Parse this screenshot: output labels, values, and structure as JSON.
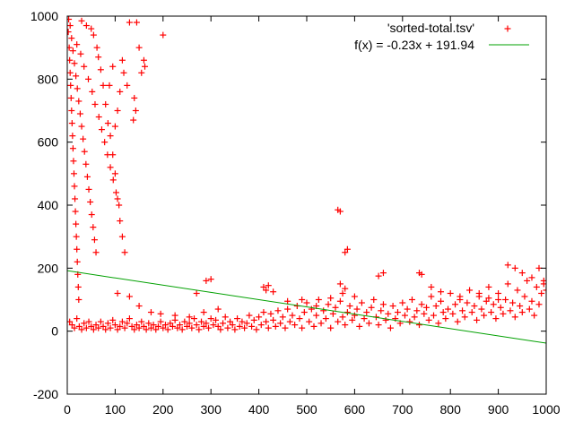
{
  "chart_data": {
    "type": "scatter",
    "title": "",
    "xlabel": "",
    "ylabel": "",
    "xlim": [
      0,
      1000
    ],
    "ylim": [
      -200,
      1000
    ],
    "x_ticks": [
      0,
      100,
      200,
      300,
      400,
      500,
      600,
      700,
      800,
      900,
      1000
    ],
    "y_ticks": [
      -200,
      0,
      200,
      400,
      600,
      800,
      1000
    ],
    "grid": false,
    "legend_position": "top-right",
    "series": [
      {
        "name": "'sorted-total.tsv'",
        "kind": "points",
        "marker": "plus",
        "color": "#ff0000",
        "points": [
          [
            2,
            950
          ],
          [
            4,
            900
          ],
          [
            5,
            860
          ],
          [
            6,
            820
          ],
          [
            7,
            780
          ],
          [
            8,
            740
          ],
          [
            9,
            700
          ],
          [
            10,
            660
          ],
          [
            11,
            620
          ],
          [
            12,
            580
          ],
          [
            13,
            540
          ],
          [
            14,
            500
          ],
          [
            15,
            460
          ],
          [
            16,
            420
          ],
          [
            17,
            380
          ],
          [
            18,
            340
          ],
          [
            19,
            300
          ],
          [
            20,
            260
          ],
          [
            21,
            220
          ],
          [
            22,
            180
          ],
          [
            23,
            140
          ],
          [
            24,
            100
          ],
          [
            3,
            990
          ],
          [
            6,
            970
          ],
          [
            9,
            930
          ],
          [
            12,
            890
          ],
          [
            15,
            850
          ],
          [
            18,
            810
          ],
          [
            21,
            770
          ],
          [
            24,
            730
          ],
          [
            27,
            690
          ],
          [
            30,
            650
          ],
          [
            33,
            610
          ],
          [
            36,
            570
          ],
          [
            39,
            530
          ],
          [
            42,
            490
          ],
          [
            45,
            450
          ],
          [
            48,
            410
          ],
          [
            51,
            370
          ],
          [
            54,
            330
          ],
          [
            57,
            290
          ],
          [
            60,
            250
          ],
          [
            30,
            985
          ],
          [
            40,
            970
          ],
          [
            50,
            960
          ],
          [
            55,
            940
          ],
          [
            62,
            900
          ],
          [
            65,
            870
          ],
          [
            70,
            830
          ],
          [
            75,
            780
          ],
          [
            80,
            720
          ],
          [
            85,
            660
          ],
          [
            90,
            620
          ],
          [
            95,
            560
          ],
          [
            100,
            500
          ],
          [
            105,
            420
          ],
          [
            110,
            350
          ],
          [
            115,
            300
          ],
          [
            120,
            250
          ],
          [
            20,
            910
          ],
          [
            28,
            880
          ],
          [
            35,
            840
          ],
          [
            44,
            800
          ],
          [
            52,
            760
          ],
          [
            58,
            720
          ],
          [
            66,
            680
          ],
          [
            72,
            640
          ],
          [
            78,
            600
          ],
          [
            84,
            560
          ],
          [
            90,
            520
          ],
          [
            96,
            480
          ],
          [
            102,
            440
          ],
          [
            108,
            400
          ],
          [
            130,
            980
          ],
          [
            145,
            980
          ],
          [
            150,
            900
          ],
          [
            160,
            860
          ],
          [
            162,
            840
          ],
          [
            155,
            820
          ],
          [
            115,
            860
          ],
          [
            118,
            820
          ],
          [
            125,
            780
          ],
          [
            140,
            740
          ],
          [
            143,
            700
          ],
          [
            138,
            670
          ],
          [
            200,
            940
          ],
          [
            110,
            760
          ],
          [
            95,
            840
          ],
          [
            88,
            780
          ],
          [
            105,
            700
          ],
          [
            100,
            650
          ],
          [
            5,
            30
          ],
          [
            10,
            20
          ],
          [
            15,
            10
          ],
          [
            20,
            40
          ],
          [
            25,
            15
          ],
          [
            30,
            5
          ],
          [
            35,
            25
          ],
          [
            40,
            10
          ],
          [
            45,
            30
          ],
          [
            50,
            15
          ],
          [
            55,
            5
          ],
          [
            60,
            20
          ],
          [
            65,
            10
          ],
          [
            70,
            30
          ],
          [
            75,
            15
          ],
          [
            80,
            5
          ],
          [
            85,
            25
          ],
          [
            90,
            10
          ],
          [
            95,
            35
          ],
          [
            100,
            20
          ],
          [
            105,
            5
          ],
          [
            110,
            15
          ],
          [
            115,
            30
          ],
          [
            120,
            10
          ],
          [
            125,
            25
          ],
          [
            130,
            40
          ],
          [
            135,
            15
          ],
          [
            140,
            5
          ],
          [
            145,
            20
          ],
          [
            150,
            10
          ],
          [
            155,
            30
          ],
          [
            160,
            15
          ],
          [
            165,
            5
          ],
          [
            170,
            25
          ],
          [
            175,
            10
          ],
          [
            180,
            20
          ],
          [
            185,
            5
          ],
          [
            190,
            15
          ],
          [
            195,
            30
          ],
          [
            200,
            10
          ],
          [
            205,
            20
          ],
          [
            210,
            5
          ],
          [
            215,
            25
          ],
          [
            220,
            15
          ],
          [
            225,
            35
          ],
          [
            230,
            10
          ],
          [
            235,
            20
          ],
          [
            240,
            5
          ],
          [
            245,
            30
          ],
          [
            250,
            15
          ],
          [
            255,
            25
          ],
          [
            260,
            10
          ],
          [
            265,
            40
          ],
          [
            270,
            20
          ],
          [
            275,
            5
          ],
          [
            280,
            30
          ],
          [
            285,
            15
          ],
          [
            290,
            25
          ],
          [
            295,
            10
          ],
          [
            300,
            40
          ],
          [
            305,
            20
          ],
          [
            310,
            35
          ],
          [
            315,
            15
          ],
          [
            320,
            5
          ],
          [
            325,
            25
          ],
          [
            330,
            45
          ],
          [
            335,
            10
          ],
          [
            340,
            30
          ],
          [
            345,
            20
          ],
          [
            350,
            5
          ],
          [
            355,
            40
          ],
          [
            360,
            15
          ],
          [
            365,
            30
          ],
          [
            370,
            10
          ],
          [
            375,
            25
          ],
          [
            380,
            50
          ],
          [
            385,
            15
          ],
          [
            390,
            35
          ],
          [
            395,
            5
          ],
          [
            400,
            45
          ],
          [
            405,
            20
          ],
          [
            410,
            60
          ],
          [
            415,
            30
          ],
          [
            420,
            10
          ],
          [
            425,
            55
          ],
          [
            430,
            35
          ],
          [
            435,
            15
          ],
          [
            440,
            65
          ],
          [
            445,
            25
          ],
          [
            450,
            45
          ],
          [
            455,
            10
          ],
          [
            460,
            70
          ],
          [
            465,
            30
          ],
          [
            470,
            50
          ],
          [
            475,
            20
          ],
          [
            480,
            80
          ],
          [
            485,
            40
          ],
          [
            490,
            10
          ],
          [
            495,
            60
          ],
          [
            500,
            90
          ],
          [
            505,
            30
          ],
          [
            510,
            70
          ],
          [
            515,
            15
          ],
          [
            520,
            50
          ],
          [
            525,
            100
          ],
          [
            530,
            25
          ],
          [
            535,
            65
          ],
          [
            540,
            40
          ],
          [
            545,
            85
          ],
          [
            550,
            10
          ],
          [
            555,
            55
          ],
          [
            560,
            75
          ],
          [
            565,
            30
          ],
          [
            570,
            95
          ],
          [
            575,
            45
          ],
          [
            580,
            20
          ],
          [
            585,
            60
          ],
          [
            590,
            80
          ],
          [
            595,
            35
          ],
          [
            600,
            50
          ],
          [
            605,
            70
          ],
          [
            610,
            15
          ],
          [
            615,
            90
          ],
          [
            620,
            40
          ],
          [
            625,
            60
          ],
          [
            630,
            25
          ],
          [
            635,
            75
          ],
          [
            640,
            100
          ],
          [
            645,
            45
          ],
          [
            650,
            20
          ],
          [
            655,
            65
          ],
          [
            660,
            85
          ],
          [
            665,
            35
          ],
          [
            670,
            55
          ],
          [
            675,
            10
          ],
          [
            680,
            80
          ],
          [
            685,
            40
          ],
          [
            690,
            60
          ],
          [
            695,
            25
          ],
          [
            700,
            90
          ],
          [
            705,
            50
          ],
          [
            710,
            70
          ],
          [
            715,
            30
          ],
          [
            720,
            100
          ],
          [
            725,
            45
          ],
          [
            730,
            65
          ],
          [
            735,
            20
          ],
          [
            740,
            85
          ],
          [
            745,
            55
          ],
          [
            750,
            75
          ],
          [
            755,
            35
          ],
          [
            760,
            110
          ],
          [
            765,
            50
          ],
          [
            770,
            80
          ],
          [
            775,
            25
          ],
          [
            780,
            95
          ],
          [
            785,
            60
          ],
          [
            790,
            40
          ],
          [
            795,
            70
          ],
          [
            800,
            120
          ],
          [
            805,
            55
          ],
          [
            810,
            85
          ],
          [
            815,
            30
          ],
          [
            820,
            100
          ],
          [
            825,
            65
          ],
          [
            830,
            45
          ],
          [
            835,
            90
          ],
          [
            840,
            130
          ],
          [
            845,
            60
          ],
          [
            850,
            80
          ],
          [
            855,
            35
          ],
          [
            860,
            110
          ],
          [
            865,
            70
          ],
          [
            870,
            50
          ],
          [
            875,
            95
          ],
          [
            880,
            140
          ],
          [
            885,
            60
          ],
          [
            890,
            85
          ],
          [
            895,
            40
          ],
          [
            900,
            120
          ],
          [
            905,
            75
          ],
          [
            910,
            55
          ],
          [
            915,
            100
          ],
          [
            920,
            150
          ],
          [
            925,
            65
          ],
          [
            930,
            90
          ],
          [
            935,
            45
          ],
          [
            940,
            130
          ],
          [
            945,
            80
          ],
          [
            950,
            60
          ],
          [
            955,
            110
          ],
          [
            960,
            160
          ],
          [
            965,
            70
          ],
          [
            970,
            95
          ],
          [
            975,
            50
          ],
          [
            980,
            140
          ],
          [
            985,
            85
          ],
          [
            990,
            120
          ],
          [
            995,
            160
          ],
          [
            290,
            160
          ],
          [
            300,
            165
          ],
          [
            270,
            120
          ],
          [
            130,
            110
          ],
          [
            105,
            120
          ],
          [
            150,
            80
          ],
          [
            175,
            60
          ],
          [
            195,
            55
          ],
          [
            225,
            50
          ],
          [
            255,
            45
          ],
          [
            285,
            60
          ],
          [
            315,
            70
          ],
          [
            410,
            140
          ],
          [
            420,
            145
          ],
          [
            415,
            130
          ],
          [
            430,
            125
          ],
          [
            460,
            95
          ],
          [
            490,
            100
          ],
          [
            520,
            80
          ],
          [
            550,
            105
          ],
          [
            570,
            150
          ],
          [
            575,
            120
          ],
          [
            580,
            135
          ],
          [
            600,
            110
          ],
          [
            565,
            385
          ],
          [
            570,
            380
          ],
          [
            580,
            250
          ],
          [
            585,
            260
          ],
          [
            650,
            175
          ],
          [
            660,
            185
          ],
          [
            735,
            185
          ],
          [
            740,
            180
          ],
          [
            760,
            140
          ],
          [
            780,
            125
          ],
          [
            820,
            110
          ],
          [
            860,
            120
          ],
          [
            880,
            105
          ],
          [
            900,
            100
          ],
          [
            920,
            210
          ],
          [
            935,
            200
          ],
          [
            950,
            185
          ],
          [
            970,
            170
          ],
          [
            985,
            200
          ],
          [
            995,
            150
          ],
          [
            1000,
            130
          ]
        ]
      },
      {
        "name": "f(x) = -0.23x + 191.94",
        "kind": "line",
        "color": "#00a000",
        "slope": -0.23,
        "intercept": 191.94
      }
    ]
  }
}
